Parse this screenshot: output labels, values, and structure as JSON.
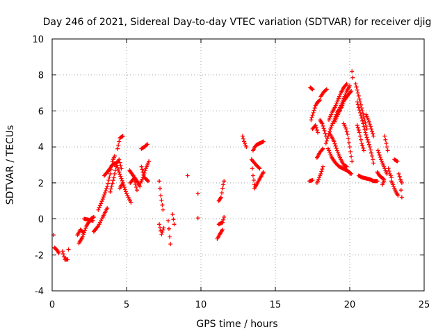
{
  "chart_data": {
    "type": "scatter",
    "title": "Day 246 of 2021, Sidereal Day-to-day VTEC variation (SDTVAR) for receiver djig",
    "xlabel": "GPS time / hours",
    "ylabel": "SDTVAR / TECUs",
    "xlim": [
      0,
      25
    ],
    "ylim": [
      -4,
      10
    ],
    "xticks": [
      "0",
      "5",
      "10",
      "15",
      "20",
      "25"
    ],
    "yticks": [
      "-4",
      "-2",
      "0",
      "2",
      "4",
      "6",
      "8",
      "10"
    ],
    "grid": true,
    "marker": "+",
    "series": [
      {
        "name": "SDTVAR",
        "color": "#ff0000",
        "tracks": [
          [
            [
              0.1,
              -0.9
            ]
          ],
          [
            [
              0.15,
              -1.6
            ],
            [
              0.3,
              -1.7
            ],
            [
              0.45,
              -1.9
            ]
          ],
          [
            [
              0.7,
              -1.8
            ],
            [
              0.85,
              -2.25
            ],
            [
              1.05,
              -2.25
            ],
            [
              1.1,
              -1.7
            ]
          ],
          [
            [
              1.7,
              -0.9
            ],
            [
              1.9,
              -0.6
            ],
            [
              2.1,
              -0.75
            ]
          ],
          [
            [
              1.8,
              -1.35
            ],
            [
              2.05,
              -1.0
            ],
            [
              2.3,
              -0.4
            ],
            [
              2.6,
              0.0
            ],
            [
              2.8,
              0.1
            ]
          ],
          [
            [
              2.15,
              0.0
            ],
            [
              2.45,
              -0.05
            ],
            [
              2.75,
              -0.1
            ]
          ],
          [
            [
              2.8,
              -0.7
            ],
            [
              3.1,
              -0.4
            ],
            [
              3.4,
              0.1
            ],
            [
              3.7,
              0.6
            ]
          ],
          [
            [
              3.1,
              0.5
            ],
            [
              3.4,
              1.1
            ],
            [
              3.7,
              1.8
            ],
            [
              3.9,
              2.5
            ],
            [
              4.05,
              3.2
            ],
            [
              4.2,
              3.5
            ]
          ],
          [
            [
              3.5,
              2.4
            ],
            [
              3.8,
              2.7
            ],
            [
              4.05,
              3.0
            ],
            [
              4.3,
              3.1
            ],
            [
              4.5,
              2.6
            ],
            [
              4.75,
              2.0
            ],
            [
              5.0,
              1.4
            ],
            [
              5.3,
              0.9
            ]
          ],
          [
            [
              3.9,
              1.5
            ],
            [
              4.15,
              2.3
            ],
            [
              4.35,
              3.1
            ],
            [
              4.5,
              3.3
            ],
            [
              4.65,
              2.8
            ]
          ],
          [
            [
              4.4,
              3.9
            ],
            [
              4.55,
              4.5
            ],
            [
              4.75,
              4.6
            ]
          ],
          [
            [
              4.55,
              1.7
            ],
            [
              4.75,
              2.0
            ]
          ],
          [
            [
              5.2,
              2.7
            ],
            [
              5.45,
              2.4
            ],
            [
              5.7,
              2.1
            ],
            [
              5.9,
              1.8
            ]
          ],
          [
            [
              5.25,
              2.0
            ],
            [
              5.5,
              2.25
            ],
            [
              5.7,
              1.6
            ]
          ],
          [
            [
              6.0,
              3.9
            ],
            [
              6.2,
              4.0
            ],
            [
              6.4,
              4.15
            ]
          ],
          [
            [
              5.95,
              2.0
            ],
            [
              6.1,
              2.3
            ],
            [
              6.3,
              2.8
            ],
            [
              6.5,
              3.2
            ]
          ],
          [
            [
              6.0,
              2.9
            ],
            [
              6.2,
              2.3
            ],
            [
              6.45,
              2.1
            ]
          ],
          [
            [
              7.2,
              2.1
            ],
            [
              7.3,
              1.3
            ],
            [
              7.45,
              0.5
            ]
          ],
          [
            [
              7.2,
              -0.3
            ],
            [
              7.35,
              -0.85
            ],
            [
              7.5,
              -0.5
            ]
          ],
          [
            [
              7.8,
              -0.1
            ],
            [
              7.9,
              -1.0
            ],
            [
              7.95,
              -1.4
            ]
          ],
          [
            [
              8.1,
              0.25
            ],
            [
              8.2,
              -0.3
            ]
          ],
          [
            [
              9.1,
              2.4
            ]
          ],
          [
            [
              9.8,
              1.4
            ]
          ],
          [
            [
              9.8,
              0.05
            ]
          ],
          [
            [
              11.1,
              -1.1
            ],
            [
              11.3,
              -0.8
            ],
            [
              11.45,
              -0.6
            ]
          ],
          [
            [
              11.2,
              1.0
            ],
            [
              11.35,
              1.2
            ],
            [
              11.45,
              1.7
            ],
            [
              11.55,
              2.1
            ]
          ],
          [
            [
              11.2,
              -0.3
            ],
            [
              11.45,
              -0.2
            ],
            [
              11.55,
              0.1
            ]
          ],
          [
            [
              12.8,
              4.6
            ],
            [
              12.9,
              4.3
            ],
            [
              13.05,
              4.0
            ]
          ],
          [
            [
              13.45,
              2.8
            ],
            [
              13.5,
              2.4
            ],
            [
              13.6,
              1.9
            ]
          ],
          [
            [
              13.5,
              3.8
            ],
            [
              13.7,
              4.1
            ],
            [
              13.95,
              4.2
            ],
            [
              14.2,
              4.3
            ]
          ],
          [
            [
              13.6,
              1.7
            ],
            [
              13.8,
              2.0
            ],
            [
              14.0,
              2.3
            ],
            [
              14.2,
              2.6
            ]
          ],
          [
            [
              13.4,
              3.3
            ],
            [
              13.7,
              3.0
            ],
            [
              13.95,
              2.8
            ]
          ],
          [
            [
              17.3,
              2.1
            ],
            [
              17.5,
              2.15
            ]
          ],
          [
            [
              17.35,
              7.3
            ],
            [
              17.5,
              7.2
            ]
          ],
          [
            [
              17.4,
              5.5
            ],
            [
              17.55,
              5.9
            ],
            [
              17.7,
              6.3
            ],
            [
              17.85,
              6.5
            ],
            [
              18.0,
              6.6
            ]
          ],
          [
            [
              17.5,
              5.0
            ],
            [
              17.7,
              5.2
            ],
            [
              17.85,
              4.8
            ]
          ],
          [
            [
              17.8,
              2.0
            ],
            [
              18.05,
              2.5
            ],
            [
              18.2,
              2.9
            ]
          ],
          [
            [
              17.8,
              3.4
            ],
            [
              18.0,
              3.7
            ],
            [
              18.2,
              3.9
            ]
          ],
          [
            [
              18.05,
              6.8
            ],
            [
              18.25,
              7.05
            ],
            [
              18.45,
              7.2
            ]
          ],
          [
            [
              18.0,
              5.5
            ],
            [
              18.15,
              5.3
            ],
            [
              18.3,
              4.9
            ],
            [
              18.4,
              4.6
            ]
          ],
          [
            [
              18.4,
              4.2
            ],
            [
              18.55,
              4.6
            ],
            [
              18.7,
              5.0
            ],
            [
              18.85,
              5.3
            ],
            [
              19.0,
              5.6
            ],
            [
              19.15,
              5.9
            ],
            [
              19.3,
              6.1
            ],
            [
              19.45,
              6.4
            ],
            [
              19.6,
              6.7
            ],
            [
              19.8,
              7.1
            ],
            [
              20.0,
              7.4
            ]
          ],
          [
            [
              18.6,
              5.5
            ],
            [
              18.8,
              5.9
            ],
            [
              19.0,
              6.2
            ],
            [
              19.2,
              6.6
            ],
            [
              19.4,
              7.0
            ],
            [
              19.6,
              7.3
            ],
            [
              19.8,
              7.5
            ]
          ],
          [
            [
              18.55,
              3.9
            ],
            [
              18.8,
              3.4
            ],
            [
              19.05,
              3.1
            ],
            [
              19.3,
              2.9
            ],
            [
              19.55,
              2.8
            ],
            [
              19.8,
              2.7
            ],
            [
              20.1,
              2.5
            ]
          ],
          [
            [
              18.7,
              4.7
            ],
            [
              18.95,
              4.3
            ],
            [
              19.15,
              3.8
            ],
            [
              19.4,
              3.3
            ],
            [
              19.6,
              3.0
            ],
            [
              19.8,
              2.9
            ]
          ],
          [
            [
              19.0,
              5.4
            ],
            [
              19.2,
              5.8
            ],
            [
              19.45,
              6.2
            ],
            [
              19.65,
              6.6
            ],
            [
              19.9,
              6.9
            ],
            [
              20.1,
              7.1
            ]
          ],
          [
            [
              19.6,
              5.3
            ],
            [
              19.75,
              5.0
            ],
            [
              19.85,
              4.7
            ],
            [
              20.0,
              4.0
            ],
            [
              20.15,
              3.2
            ]
          ],
          [
            [
              20.15,
              8.2
            ],
            [
              20.2,
              7.85
            ]
          ],
          [
            [
              20.4,
              7.5
            ],
            [
              20.55,
              7.0
            ],
            [
              20.7,
              6.5
            ],
            [
              20.85,
              6.0
            ],
            [
              21.0,
              5.5
            ],
            [
              21.15,
              5.0
            ]
          ],
          [
            [
              20.5,
              6.5
            ],
            [
              20.7,
              5.9
            ],
            [
              20.9,
              5.3
            ],
            [
              21.05,
              4.8
            ],
            [
              21.2,
              4.4
            ],
            [
              21.35,
              4.0
            ],
            [
              21.5,
              3.5
            ],
            [
              21.6,
              3.1
            ]
          ],
          [
            [
              20.5,
              5.2
            ],
            [
              20.65,
              4.8
            ],
            [
              20.8,
              4.2
            ],
            [
              20.95,
              3.8
            ]
          ],
          [
            [
              20.6,
              2.4
            ],
            [
              20.85,
              2.3
            ],
            [
              21.1,
              2.25
            ],
            [
              21.35,
              2.2
            ],
            [
              21.6,
              2.1
            ],
            [
              21.85,
              2.1
            ]
          ],
          [
            [
              21.1,
              5.8
            ],
            [
              21.3,
              5.4
            ],
            [
              21.45,
              5.0
            ],
            [
              21.6,
              4.6
            ]
          ],
          [
            [
              21.9,
              3.8
            ],
            [
              22.1,
              3.3
            ],
            [
              22.3,
              2.9
            ],
            [
              22.5,
              2.5
            ]
          ],
          [
            [
              21.85,
              2.6
            ],
            [
              22.0,
              2.4
            ],
            [
              22.15,
              2.3
            ],
            [
              22.3,
              2.2
            ]
          ],
          [
            [
              22.2,
              1.9
            ],
            [
              22.3,
              2.1
            ]
          ],
          [
            [
              22.35,
              4.6
            ],
            [
              22.45,
              4.2
            ],
            [
              22.55,
              3.8
            ]
          ],
          [
            [
              22.6,
              2.8
            ],
            [
              22.7,
              2.5
            ],
            [
              22.8,
              2.3
            ]
          ],
          [
            [
              22.8,
              2.1
            ],
            [
              22.95,
              1.8
            ],
            [
              23.1,
              1.5
            ],
            [
              23.25,
              1.3
            ]
          ],
          [
            [
              23.0,
              3.3
            ],
            [
              23.2,
              3.2
            ]
          ],
          [
            [
              23.3,
              2.5
            ],
            [
              23.4,
              2.2
            ],
            [
              23.5,
              2.0
            ],
            [
              23.45,
              1.6
            ],
            [
              23.5,
              1.2
            ]
          ]
        ]
      }
    ]
  }
}
